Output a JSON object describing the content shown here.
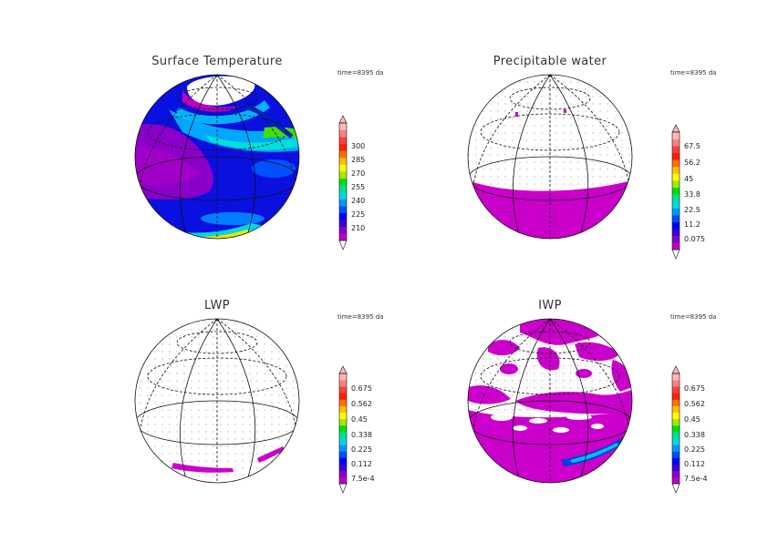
{
  "panels": [
    {
      "id": "surface-temperature",
      "title": "Surface Temperature",
      "time_label": "time=8395 da",
      "colorbar_ticks": [
        "300",
        "285",
        "270",
        "255",
        "240",
        "225",
        "210"
      ]
    },
    {
      "id": "precipitable-water",
      "title": "Precipitable water",
      "time_label": "time=8395 da",
      "colorbar_ticks": [
        "67.5",
        "56.2",
        "45",
        "33.8",
        "22.5",
        "11.2",
        "0.075"
      ]
    },
    {
      "id": "lwp",
      "title": "LWP",
      "time_label": "time=8395 da",
      "colorbar_ticks": [
        "0.675",
        "0.562",
        "0.45",
        "0.338",
        "0.225",
        "0.112",
        "7.5e-4"
      ]
    },
    {
      "id": "iwp",
      "title": "IWP",
      "time_label": "time=8395 da",
      "colorbar_ticks": [
        "0.675",
        "0.562",
        "0.45",
        "0.338",
        "0.225",
        "0.112",
        "7.5e-4"
      ]
    }
  ],
  "colors": {
    "palette": [
      "#c000c0",
      "#8a00c8",
      "#3a00d8",
      "#0000ff",
      "#0050ff",
      "#0098ff",
      "#00d8e0",
      "#00e090",
      "#00e000",
      "#a8e800",
      "#ffff00",
      "#ffc000",
      "#ff7000",
      "#ff2000",
      "#ff4040",
      "#ff8080",
      "#ffb8b8"
    ],
    "magenta": "#cc00cc",
    "deep_blue": "#1010d0"
  }
}
